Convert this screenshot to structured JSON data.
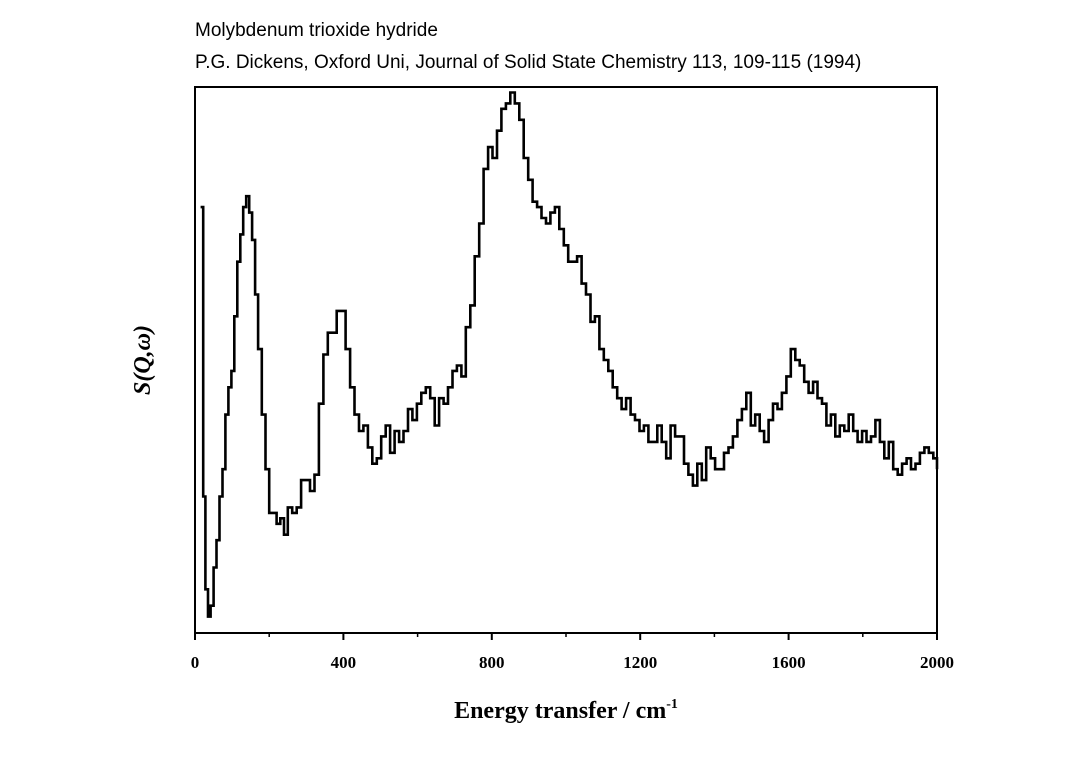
{
  "chart_data": {
    "type": "line",
    "style": "step",
    "title": "Molybdenum trioxide hydride",
    "subtitle": "P.G. Dickens, Oxford Uni, Journal of Solid State Chemistry 113, 109-115 (1994)",
    "xlabel": "Energy transfer / cm",
    "xlabel_superscript": "-1",
    "ylabel": "S(Q,ω)",
    "xlim": [
      0,
      2000
    ],
    "ylim": [
      0,
      1
    ],
    "xticks": [
      "0",
      "400",
      "800",
      "1200",
      "1600",
      "2000"
    ],
    "yticks": [],
    "grid": false,
    "legend": "none",
    "series": [
      {
        "name": "S(Q,ω)",
        "color": "#000000",
        "x": [
          15,
          22,
          28,
          35,
          42,
          50,
          58,
          66,
          74,
          82,
          90,
          98,
          106,
          114,
          122,
          130,
          138,
          146,
          154,
          162,
          170,
          180,
          190,
          200,
          210,
          220,
          230,
          240,
          250,
          262,
          274,
          286,
          298,
          310,
          322,
          334,
          346,
          358,
          370,
          382,
          394,
          406,
          418,
          430,
          442,
          454,
          466,
          478,
          490,
          502,
          514,
          526,
          538,
          550,
          562,
          574,
          586,
          598,
          610,
          622,
          634,
          646,
          658,
          670,
          682,
          694,
          706,
          718,
          730,
          742,
          754,
          766,
          778,
          790,
          802,
          814,
          826,
          838,
          850,
          862,
          874,
          886,
          898,
          910,
          922,
          934,
          946,
          958,
          970,
          982,
          994,
          1006,
          1018,
          1030,
          1042,
          1054,
          1066,
          1078,
          1090,
          1102,
          1114,
          1126,
          1138,
          1150,
          1162,
          1174,
          1186,
          1198,
          1210,
          1222,
          1234,
          1246,
          1258,
          1270,
          1282,
          1294,
          1306,
          1318,
          1330,
          1342,
          1354,
          1366,
          1378,
          1390,
          1402,
          1414,
          1426,
          1438,
          1450,
          1462,
          1474,
          1486,
          1498,
          1510,
          1522,
          1534,
          1546,
          1558,
          1570,
          1582,
          1594,
          1606,
          1618,
          1630,
          1642,
          1654,
          1666,
          1678,
          1690,
          1702,
          1714,
          1726,
          1738,
          1750,
          1762,
          1774,
          1786,
          1798,
          1810,
          1822,
          1834,
          1846,
          1858,
          1870,
          1882,
          1894,
          1906,
          1918,
          1930,
          1942,
          1954,
          1966,
          1978,
          1990,
          2000
        ],
        "y": [
          0.78,
          0.25,
          0.08,
          0.03,
          0.05,
          0.12,
          0.17,
          0.25,
          0.3,
          0.4,
          0.45,
          0.48,
          0.58,
          0.68,
          0.73,
          0.78,
          0.8,
          0.77,
          0.72,
          0.62,
          0.52,
          0.4,
          0.3,
          0.22,
          0.22,
          0.2,
          0.21,
          0.18,
          0.23,
          0.22,
          0.23,
          0.28,
          0.28,
          0.26,
          0.29,
          0.42,
          0.51,
          0.55,
          0.55,
          0.59,
          0.59,
          0.52,
          0.45,
          0.4,
          0.37,
          0.38,
          0.34,
          0.31,
          0.32,
          0.36,
          0.38,
          0.33,
          0.37,
          0.35,
          0.37,
          0.41,
          0.39,
          0.42,
          0.44,
          0.45,
          0.43,
          0.38,
          0.43,
          0.42,
          0.45,
          0.48,
          0.49,
          0.47,
          0.56,
          0.6,
          0.69,
          0.75,
          0.85,
          0.89,
          0.87,
          0.92,
          0.96,
          0.97,
          0.99,
          0.97,
          0.94,
          0.87,
          0.83,
          0.79,
          0.78,
          0.76,
          0.75,
          0.77,
          0.78,
          0.74,
          0.71,
          0.68,
          0.68,
          0.69,
          0.64,
          0.62,
          0.57,
          0.58,
          0.52,
          0.5,
          0.48,
          0.45,
          0.43,
          0.41,
          0.43,
          0.4,
          0.39,
          0.37,
          0.38,
          0.35,
          0.35,
          0.38,
          0.35,
          0.32,
          0.38,
          0.36,
          0.36,
          0.31,
          0.29,
          0.27,
          0.31,
          0.28,
          0.34,
          0.32,
          0.3,
          0.3,
          0.33,
          0.34,
          0.36,
          0.39,
          0.41,
          0.44,
          0.38,
          0.4,
          0.37,
          0.35,
          0.39,
          0.42,
          0.41,
          0.44,
          0.47,
          0.52,
          0.5,
          0.49,
          0.46,
          0.44,
          0.46,
          0.43,
          0.42,
          0.38,
          0.4,
          0.36,
          0.38,
          0.37,
          0.4,
          0.37,
          0.35,
          0.37,
          0.35,
          0.36,
          0.39,
          0.35,
          0.32,
          0.35,
          0.3,
          0.29,
          0.31,
          0.32,
          0.3,
          0.31,
          0.33,
          0.34,
          0.33,
          0.32,
          0.3
        ]
      }
    ]
  }
}
